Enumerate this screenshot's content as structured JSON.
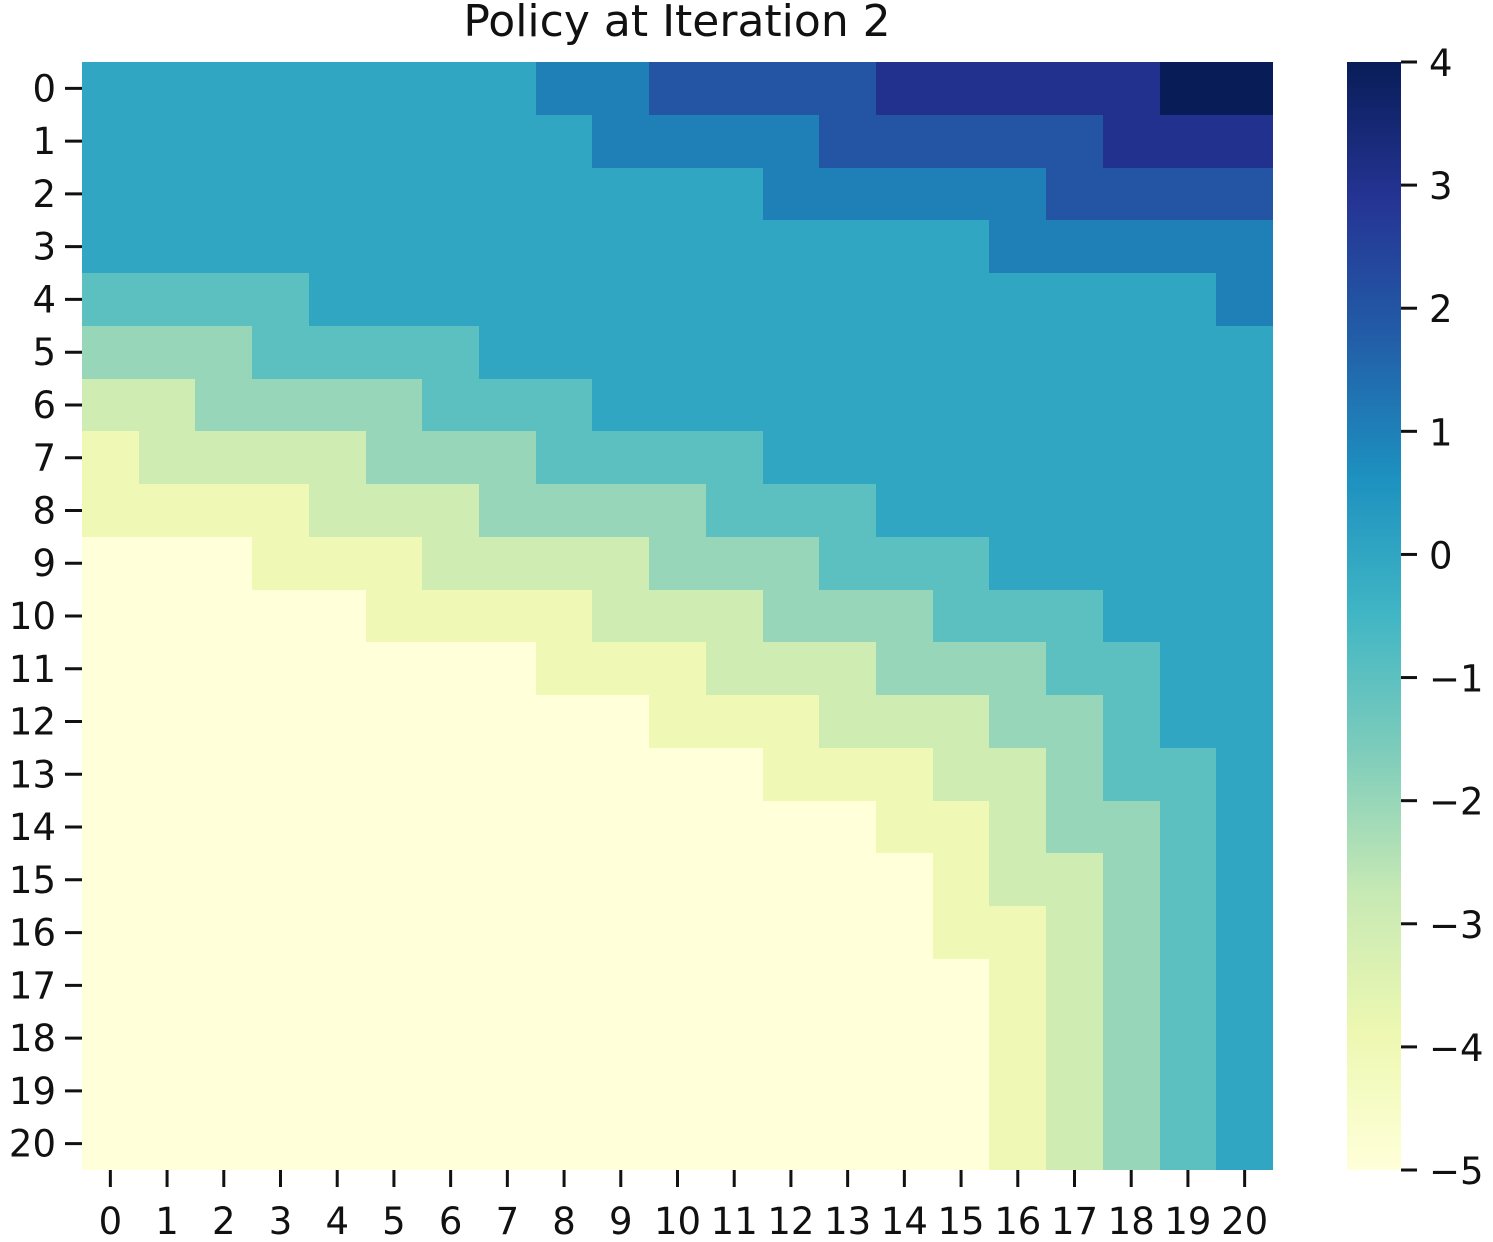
{
  "chart_data": {
    "type": "heatmap",
    "title": "Policy at Iteration 2",
    "xlabel": "",
    "ylabel": "",
    "x_categories": [
      "0",
      "1",
      "2",
      "3",
      "4",
      "5",
      "6",
      "7",
      "8",
      "9",
      "10",
      "11",
      "12",
      "13",
      "14",
      "15",
      "16",
      "17",
      "18",
      "19",
      "20"
    ],
    "y_categories": [
      "0",
      "1",
      "2",
      "3",
      "4",
      "5",
      "6",
      "7",
      "8",
      "9",
      "10",
      "11",
      "12",
      "13",
      "14",
      "15",
      "16",
      "17",
      "18",
      "19",
      "20"
    ],
    "values": [
      [
        0,
        0,
        0,
        0,
        0,
        0,
        0,
        0,
        1,
        1,
        2,
        2,
        2,
        2,
        3,
        3,
        3,
        3,
        3,
        4,
        4
      ],
      [
        0,
        0,
        0,
        0,
        0,
        0,
        0,
        0,
        0,
        1,
        1,
        1,
        1,
        2,
        2,
        2,
        2,
        2,
        3,
        3,
        3
      ],
      [
        0,
        0,
        0,
        0,
        0,
        0,
        0,
        0,
        0,
        0,
        0,
        0,
        1,
        1,
        1,
        1,
        1,
        2,
        2,
        2,
        2
      ],
      [
        0,
        0,
        0,
        0,
        0,
        0,
        0,
        0,
        0,
        0,
        0,
        0,
        0,
        0,
        0,
        0,
        1,
        1,
        1,
        1,
        1
      ],
      [
        -1,
        -1,
        -1,
        -1,
        0,
        0,
        0,
        0,
        0,
        0,
        0,
        0,
        0,
        0,
        0,
        0,
        0,
        0,
        0,
        0,
        1
      ],
      [
        -2,
        -2,
        -2,
        -1,
        -1,
        -1,
        -1,
        0,
        0,
        0,
        0,
        0,
        0,
        0,
        0,
        0,
        0,
        0,
        0,
        0,
        0
      ],
      [
        -3,
        -3,
        -2,
        -2,
        -2,
        -2,
        -1,
        -1,
        -1,
        0,
        0,
        0,
        0,
        0,
        0,
        0,
        0,
        0,
        0,
        0,
        0
      ],
      [
        -4,
        -3,
        -3,
        -3,
        -3,
        -2,
        -2,
        -2,
        -1,
        -1,
        -1,
        -1,
        0,
        0,
        0,
        0,
        0,
        0,
        0,
        0,
        0
      ],
      [
        -4,
        -4,
        -4,
        -4,
        -3,
        -3,
        -3,
        -2,
        -2,
        -2,
        -2,
        -1,
        -1,
        -1,
        0,
        0,
        0,
        0,
        0,
        0,
        0
      ],
      [
        -5,
        -5,
        -5,
        -4,
        -4,
        -4,
        -3,
        -3,
        -3,
        -3,
        -2,
        -2,
        -2,
        -1,
        -1,
        -1,
        0,
        0,
        0,
        0,
        0
      ],
      [
        -5,
        -5,
        -5,
        -5,
        -5,
        -4,
        -4,
        -4,
        -4,
        -3,
        -3,
        -3,
        -2,
        -2,
        -2,
        -1,
        -1,
        -1,
        0,
        0,
        0
      ],
      [
        -5,
        -5,
        -5,
        -5,
        -5,
        -5,
        -5,
        -5,
        -4,
        -4,
        -4,
        -3,
        -3,
        -3,
        -2,
        -2,
        -2,
        -1,
        -1,
        0,
        0
      ],
      [
        -5,
        -5,
        -5,
        -5,
        -5,
        -5,
        -5,
        -5,
        -5,
        -5,
        -4,
        -4,
        -4,
        -3,
        -3,
        -3,
        -2,
        -2,
        -1,
        0,
        0
      ],
      [
        -5,
        -5,
        -5,
        -5,
        -5,
        -5,
        -5,
        -5,
        -5,
        -5,
        -5,
        -5,
        -4,
        -4,
        -4,
        -3,
        -3,
        -2,
        -1,
        -1,
        0
      ],
      [
        -5,
        -5,
        -5,
        -5,
        -5,
        -5,
        -5,
        -5,
        -5,
        -5,
        -5,
        -5,
        -5,
        -5,
        -4,
        -4,
        -3,
        -2,
        -2,
        -1,
        0
      ],
      [
        -5,
        -5,
        -5,
        -5,
        -5,
        -5,
        -5,
        -5,
        -5,
        -5,
        -5,
        -5,
        -5,
        -5,
        -5,
        -4,
        -3,
        -3,
        -2,
        -1,
        0
      ],
      [
        -5,
        -5,
        -5,
        -5,
        -5,
        -5,
        -5,
        -5,
        -5,
        -5,
        -5,
        -5,
        -5,
        -5,
        -5,
        -4,
        -4,
        -3,
        -2,
        -1,
        0
      ],
      [
        -5,
        -5,
        -5,
        -5,
        -5,
        -5,
        -5,
        -5,
        -5,
        -5,
        -5,
        -5,
        -5,
        -5,
        -5,
        -5,
        -4,
        -3,
        -2,
        -1,
        0
      ],
      [
        -5,
        -5,
        -5,
        -5,
        -5,
        -5,
        -5,
        -5,
        -5,
        -5,
        -5,
        -5,
        -5,
        -5,
        -5,
        -5,
        -4,
        -3,
        -2,
        -1,
        0
      ],
      [
        -5,
        -5,
        -5,
        -5,
        -5,
        -5,
        -5,
        -5,
        -5,
        -5,
        -5,
        -5,
        -5,
        -5,
        -5,
        -5,
        -4,
        -3,
        -2,
        -1,
        0
      ],
      [
        -5,
        -5,
        -5,
        -5,
        -5,
        -5,
        -5,
        -5,
        -5,
        -5,
        -5,
        -5,
        -5,
        -5,
        -5,
        -5,
        -4,
        -3,
        -2,
        -1,
        0
      ]
    ],
    "colorbar": {
      "range": [
        -5,
        4
      ],
      "ticks": [
        4,
        3,
        2,
        1,
        0,
        -1,
        -2,
        -3,
        -4,
        -5
      ],
      "tick_labels": [
        "4",
        "3",
        "2",
        "1",
        "0",
        "−1",
        "−2",
        "−3",
        "−4",
        "−5"
      ],
      "colormap": "YlGnBu"
    },
    "grid": false,
    "legend": "colorbar-right"
  }
}
